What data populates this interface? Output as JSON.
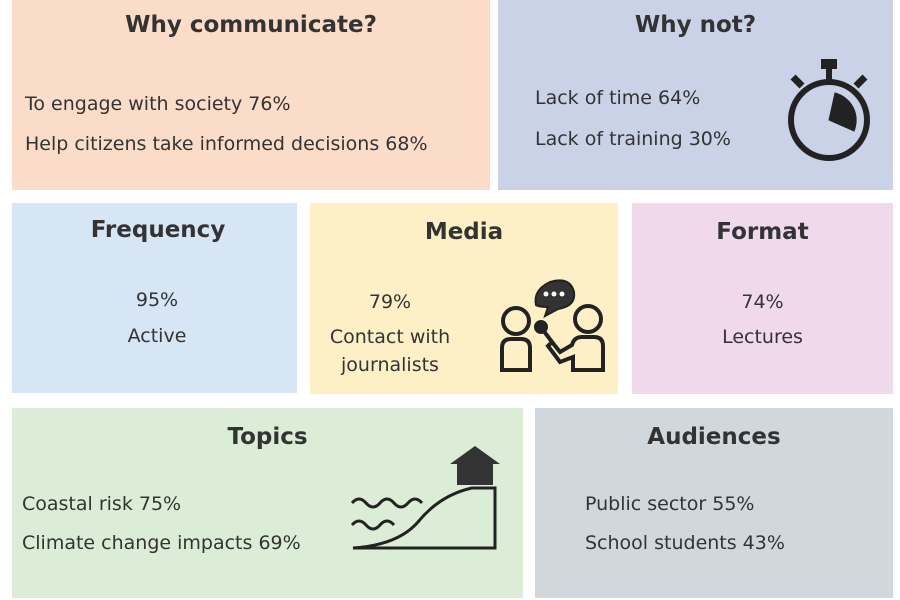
{
  "panels": [
    {
      "title": "Why communicate?",
      "items": [
        "To engage with society 76%",
        "Help citizens take informed decisions 68%"
      ]
    },
    {
      "title": "Why not?",
      "items": [
        "Lack of time 64%",
        "Lack of training 30%"
      ]
    },
    {
      "title": "Frequency",
      "items": [
        "95%",
        "Active"
      ]
    },
    {
      "title": "Media",
      "items": [
        "79%",
        "Contact with journalists"
      ]
    },
    {
      "title": "Format",
      "items": [
        "74%",
        "Lectures"
      ]
    },
    {
      "title": "Topics",
      "items": [
        "Coastal risk 75%",
        "Climate change impacts 69%"
      ]
    },
    {
      "title": "Audiences",
      "items": [
        "Public sector 55%",
        "School students 43%"
      ]
    }
  ]
}
